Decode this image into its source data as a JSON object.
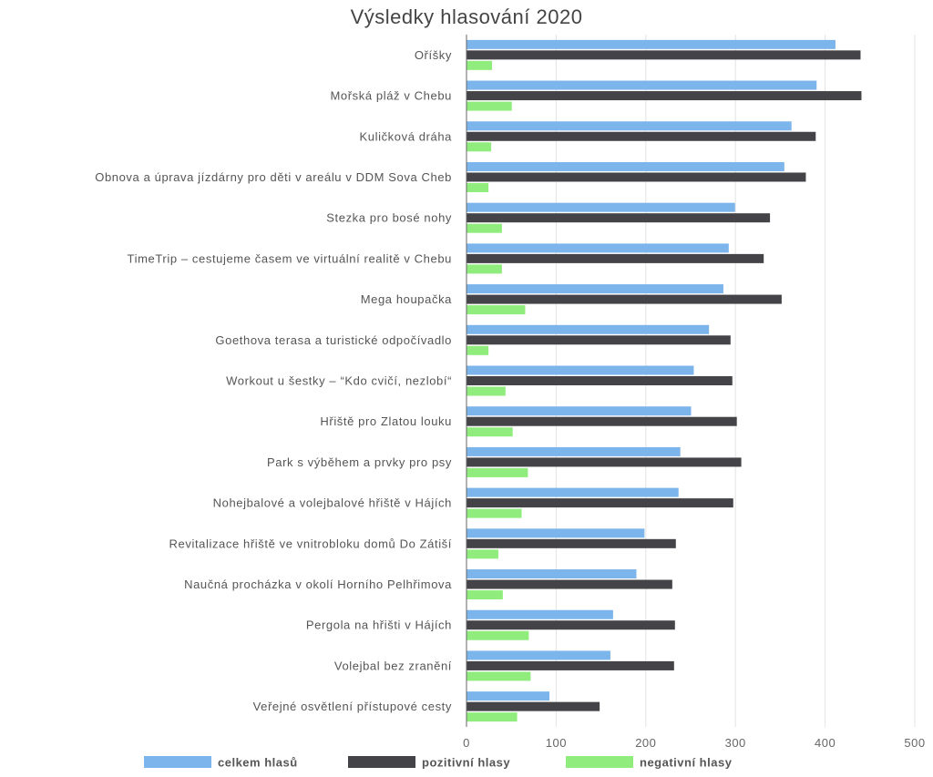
{
  "chart_data": {
    "type": "bar",
    "orientation": "horizontal",
    "title": "Výsledky hlasování 2020",
    "xlabel": "",
    "ylabel": "",
    "xlim": [
      0,
      500
    ],
    "x_ticks": [
      0,
      100,
      200,
      300,
      400,
      500
    ],
    "grid": true,
    "legend_position": "bottom",
    "categories": [
      "Oříšky",
      "Mořská pláž v Chebu",
      "Kuličková dráha",
      "Obnova a úprava jízdárny pro děti v areálu v DDM Sova Cheb",
      "Stezka pro bosé nohy",
      "TimeTrip – cestujeme časem ve virtuální   realitě v Chebu",
      "Mega houpačka",
      "Goethova terasa a turistické odpočívadlo",
      "Workout u šestky – “Kdo cvičí, nezlobí“",
      "Hřiště pro Zlatou louku",
      "Park s výběhem a prvky pro psy",
      "Nohejbalové a volejbalové hřiště v Hájích",
      "Revitalizace hřiště ve vnitrobloku domů Do Zátiší",
      "Naučná procházka v okolí Horního Pelhřimova",
      "Pergola na hřišti v Hájích",
      "Volejbal bez zranění",
      "Veřejné osvětlení přístupové cesty"
    ],
    "series": [
      {
        "name": "celkem hlasů",
        "color": "#7cb5ec",
        "values": [
          411,
          390,
          362,
          354,
          299,
          292,
          286,
          270,
          253,
          250,
          238,
          236,
          198,
          189,
          163,
          160,
          92
        ]
      },
      {
        "name": "pozitivní hlasy",
        "color": "#434348",
        "values": [
          439,
          440,
          389,
          378,
          338,
          331,
          351,
          294,
          296,
          301,
          306,
          297,
          233,
          229,
          232,
          231,
          148
        ]
      },
      {
        "name": "negativní hlasy",
        "color": "#90ed7d",
        "values": [
          28,
          50,
          27,
          24,
          39,
          39,
          65,
          24,
          43,
          51,
          68,
          61,
          35,
          40,
          69,
          71,
          56
        ]
      }
    ]
  }
}
